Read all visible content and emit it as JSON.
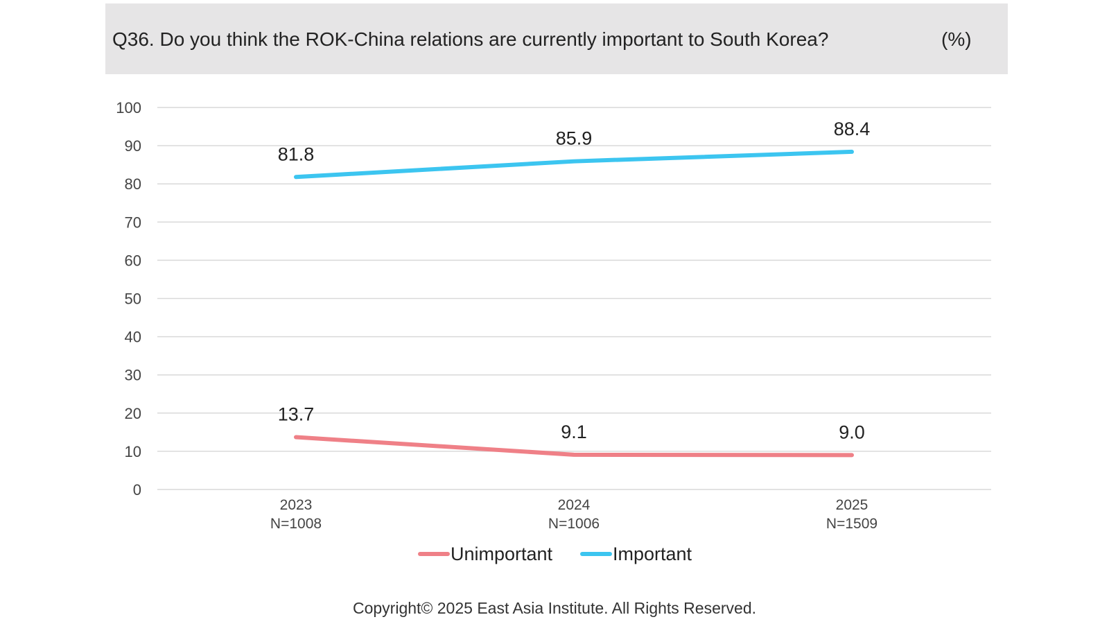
{
  "header": {
    "title": "Q36. Do you think the ROK-China relations are currently important to South Korea?",
    "unit": "(%)"
  },
  "chart_data": {
    "type": "line",
    "x": [
      "2023",
      "2024",
      "2025"
    ],
    "x_sublabels": [
      "N=1008",
      "N=1006",
      "N=1509"
    ],
    "ylim": [
      0,
      100
    ],
    "yticks": [
      0,
      10,
      20,
      30,
      40,
      50,
      60,
      70,
      80,
      90,
      100
    ],
    "grid": true,
    "legend_position": "bottom",
    "series": [
      {
        "name": "Unimportant",
        "values": [
          13.7,
          9.1,
          9.0
        ],
        "labels": [
          "13.7",
          "9.1",
          "9.0"
        ],
        "color": "#ef8087"
      },
      {
        "name": "Important",
        "values": [
          81.8,
          85.9,
          88.4
        ],
        "labels": [
          "81.8",
          "85.9",
          "88.4"
        ],
        "color": "#3cc5f0"
      }
    ]
  },
  "footer": {
    "copyright": "Copyright© 2025 East Asia Institute. All Rights Reserved."
  }
}
